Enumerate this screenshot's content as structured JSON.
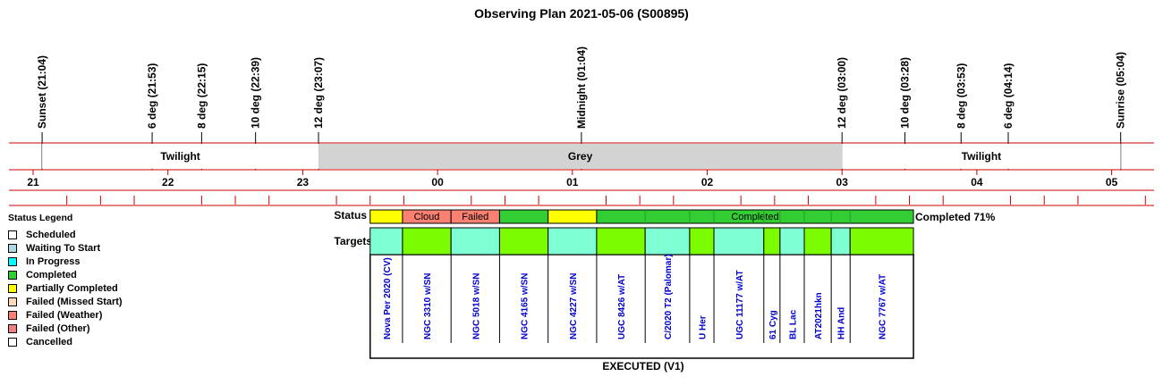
{
  "chart_data": {
    "type": "timeline",
    "title": "Observing Plan 2021-05-06 (S00895)",
    "footer": "EXECUTED (V1)",
    "status_row_label": "Status",
    "targets_row_label": "Targets",
    "completion_text": "Completed 71%",
    "time_range_hours": [
      20.833,
      29.333
    ],
    "hour_ticks": [
      {
        "label": "21",
        "hour": 21
      },
      {
        "label": "22",
        "hour": 22
      },
      {
        "label": "23",
        "hour": 23
      },
      {
        "label": "00",
        "hour": 24
      },
      {
        "label": "01",
        "hour": 25
      },
      {
        "label": "02",
        "hour": 26
      },
      {
        "label": "03",
        "hour": 27
      },
      {
        "label": "04",
        "hour": 28
      },
      {
        "label": "05",
        "hour": 29
      }
    ],
    "events": [
      {
        "label": "Sunset (21:04)",
        "hour": 21.067
      },
      {
        "label": "6 deg (21:53)",
        "hour": 21.883
      },
      {
        "label": "8 deg (22:15)",
        "hour": 22.25
      },
      {
        "label": "10 deg (22:39)",
        "hour": 22.65
      },
      {
        "label": "12 deg (23:07)",
        "hour": 23.117
      },
      {
        "label": "Midnight (01:04)",
        "hour": 25.067
      },
      {
        "label": "12 deg (03:00)",
        "hour": 27.0
      },
      {
        "label": "10 deg (03:28)",
        "hour": 27.467
      },
      {
        "label": "8 deg (03:53)",
        "hour": 27.883
      },
      {
        "label": "6 deg (04:14)",
        "hour": 28.233
      },
      {
        "label": "Sunrise (05:04)",
        "hour": 29.067
      }
    ],
    "periods": [
      {
        "label": "Twilight",
        "start": 21.067,
        "end": 23.117,
        "color": "#ffffff"
      },
      {
        "label": "Grey",
        "start": 23.117,
        "end": 27.0,
        "color": "#d3d3d3"
      },
      {
        "label": "Twilight",
        "start": 27.0,
        "end": 29.067,
        "color": "#ffffff"
      }
    ],
    "status_blocks": [
      {
        "label": "",
        "start": 23.5,
        "end": 23.74,
        "color": "#ffff00"
      },
      {
        "label": "Cloud",
        "start": 23.74,
        "end": 24.1,
        "color": "#fa8072"
      },
      {
        "label": "Failed",
        "start": 24.1,
        "end": 24.46,
        "color": "#fa8072"
      },
      {
        "label": "",
        "start": 24.46,
        "end": 24.82,
        "color": "#32cd32"
      },
      {
        "label": "",
        "start": 24.82,
        "end": 25.18,
        "color": "#ffff00"
      },
      {
        "label": "Completed",
        "start": 25.18,
        "end": 27.53,
        "color": "#32cd32"
      }
    ],
    "targets": [
      {
        "name": "Nova Per 2020 (CV)",
        "start": 23.5,
        "end": 23.74,
        "color": "#7fffd4"
      },
      {
        "name": "NGC 3310 w/SN",
        "start": 23.74,
        "end": 24.1,
        "color": "#7cfc00"
      },
      {
        "name": "NGC 5018 w/SN",
        "start": 24.1,
        "end": 24.46,
        "color": "#7fffd4"
      },
      {
        "name": "NGC 4165 w/SN",
        "start": 24.46,
        "end": 24.82,
        "color": "#7cfc00"
      },
      {
        "name": "NGC 4227 w/SN",
        "start": 24.82,
        "end": 25.18,
        "color": "#7fffd4"
      },
      {
        "name": "UGC 8426 w/AT",
        "start": 25.18,
        "end": 25.54,
        "color": "#7cfc00"
      },
      {
        "name": "C/2020 T2 (Palomar)",
        "start": 25.54,
        "end": 25.87,
        "color": "#7fffd4"
      },
      {
        "name": "U Her",
        "start": 25.87,
        "end": 26.05,
        "color": "#7cfc00"
      },
      {
        "name": "UGC 11177 w/AT",
        "start": 26.05,
        "end": 26.42,
        "color": "#7fffd4"
      },
      {
        "name": "61 Cyg",
        "start": 26.42,
        "end": 26.54,
        "color": "#7cfc00"
      },
      {
        "name": "BL Lac",
        "start": 26.54,
        "end": 26.72,
        "color": "#7fffd4"
      },
      {
        "name": "AT2021hkn",
        "start": 26.72,
        "end": 26.92,
        "color": "#7cfc00"
      },
      {
        "name": "HH And",
        "start": 26.92,
        "end": 27.06,
        "color": "#7fffd4"
      },
      {
        "name": "NGC 7767 w/AT",
        "start": 27.06,
        "end": 27.53,
        "color": "#7cfc00"
      }
    ],
    "legend": {
      "title": "Status Legend",
      "items": [
        {
          "label": "Scheduled",
          "color": "#ffffff"
        },
        {
          "label": "Waiting To Start",
          "color": "#add8e6"
        },
        {
          "label": "In Progress",
          "color": "#00ffff"
        },
        {
          "label": "Completed",
          "color": "#32cd32"
        },
        {
          "label": "Partially Completed",
          "color": "#ffff00"
        },
        {
          "label": "Failed (Missed Start)",
          "color": "#ffdab9"
        },
        {
          "label": "Failed (Weather)",
          "color": "#fa8072"
        },
        {
          "label": "Failed (Other)",
          "color": "#f08080"
        },
        {
          "label": "Cancelled",
          "color": "#ffffff"
        }
      ]
    },
    "colors": {
      "axis_line": "#cc0000",
      "target_text": "#0000cc"
    }
  }
}
